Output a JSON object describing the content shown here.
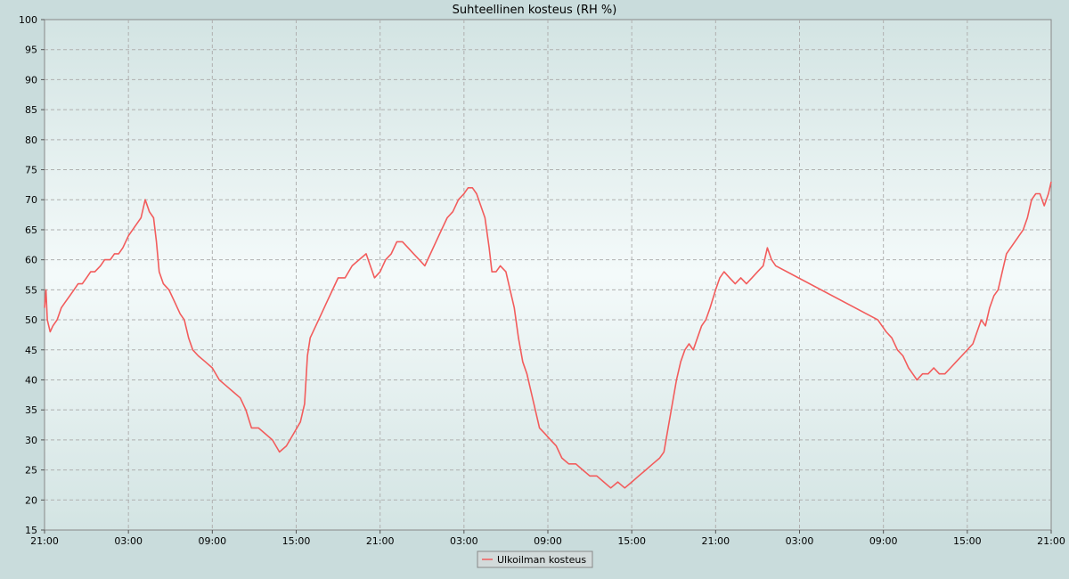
{
  "chart_data": {
    "type": "line",
    "title": "Suhteellinen kosteus (RH %)",
    "xlabel": "",
    "ylabel": "",
    "ylim": [
      15,
      100
    ],
    "y_ticks": [
      15,
      20,
      25,
      30,
      35,
      40,
      45,
      50,
      55,
      60,
      65,
      70,
      75,
      80,
      85,
      90,
      95,
      100
    ],
    "x_range_hours": [
      0,
      72
    ],
    "x_ticks": [
      {
        "h": 0,
        "label": "21:00"
      },
      {
        "h": 6,
        "label": "03:00"
      },
      {
        "h": 12,
        "label": "09:00"
      },
      {
        "h": 18,
        "label": "15:00"
      },
      {
        "h": 24,
        "label": "21:00"
      },
      {
        "h": 30,
        "label": "03:00"
      },
      {
        "h": 36,
        "label": "09:00"
      },
      {
        "h": 42,
        "label": "15:00"
      },
      {
        "h": 48,
        "label": "21:00"
      },
      {
        "h": 54,
        "label": "03:00"
      },
      {
        "h": 60,
        "label": "09:00"
      },
      {
        "h": 66,
        "label": "15:00"
      },
      {
        "h": 72,
        "label": "21:00"
      }
    ],
    "grid": true,
    "legend_position": "bottom-center",
    "series": [
      {
        "name": "Ulkoilman kosteus",
        "color": "#f25c5c",
        "points": [
          [
            0.0,
            52
          ],
          [
            0.1,
            55
          ],
          [
            0.2,
            50
          ],
          [
            0.4,
            48
          ],
          [
            0.6,
            49
          ],
          [
            0.9,
            50
          ],
          [
            1.2,
            52
          ],
          [
            1.5,
            53
          ],
          [
            1.8,
            54
          ],
          [
            2.1,
            55
          ],
          [
            2.4,
            56
          ],
          [
            2.7,
            56
          ],
          [
            3.0,
            57
          ],
          [
            3.3,
            58
          ],
          [
            3.6,
            58
          ],
          [
            4.0,
            59
          ],
          [
            4.3,
            60
          ],
          [
            4.7,
            60
          ],
          [
            5.0,
            61
          ],
          [
            5.3,
            61
          ],
          [
            5.6,
            62
          ],
          [
            6.0,
            64
          ],
          [
            6.3,
            65
          ],
          [
            6.6,
            66
          ],
          [
            6.9,
            67
          ],
          [
            7.2,
            70
          ],
          [
            7.5,
            68
          ],
          [
            7.8,
            67
          ],
          [
            8.0,
            63
          ],
          [
            8.2,
            58
          ],
          [
            8.5,
            56
          ],
          [
            8.9,
            55
          ],
          [
            9.3,
            53
          ],
          [
            9.7,
            51
          ],
          [
            10.0,
            50
          ],
          [
            10.3,
            47
          ],
          [
            10.6,
            45
          ],
          [
            11.0,
            44
          ],
          [
            11.5,
            43
          ],
          [
            12.0,
            42
          ],
          [
            12.5,
            40
          ],
          [
            13.0,
            39
          ],
          [
            13.5,
            38
          ],
          [
            14.0,
            37
          ],
          [
            14.4,
            35
          ],
          [
            14.8,
            32
          ],
          [
            15.3,
            32
          ],
          [
            15.8,
            31
          ],
          [
            16.3,
            30
          ],
          [
            16.8,
            28
          ],
          [
            17.3,
            29
          ],
          [
            17.8,
            31
          ],
          [
            18.3,
            33
          ],
          [
            18.6,
            36
          ],
          [
            18.8,
            44
          ],
          [
            19.0,
            47
          ],
          [
            19.4,
            49
          ],
          [
            19.8,
            51
          ],
          [
            20.2,
            53
          ],
          [
            20.6,
            55
          ],
          [
            21.0,
            57
          ],
          [
            21.5,
            57
          ],
          [
            22.0,
            59
          ],
          [
            22.5,
            60
          ],
          [
            23.0,
            61
          ],
          [
            23.3,
            59
          ],
          [
            23.6,
            57
          ],
          [
            24.0,
            58
          ],
          [
            24.4,
            60
          ],
          [
            24.8,
            61
          ],
          [
            25.2,
            63
          ],
          [
            25.6,
            63
          ],
          [
            26.0,
            62
          ],
          [
            26.4,
            61
          ],
          [
            26.8,
            60
          ],
          [
            27.2,
            59
          ],
          [
            27.6,
            61
          ],
          [
            28.0,
            63
          ],
          [
            28.4,
            65
          ],
          [
            28.8,
            67
          ],
          [
            29.2,
            68
          ],
          [
            29.6,
            70
          ],
          [
            30.0,
            71
          ],
          [
            30.3,
            72
          ],
          [
            30.6,
            72
          ],
          [
            30.9,
            71
          ],
          [
            31.2,
            69
          ],
          [
            31.5,
            67
          ],
          [
            31.8,
            62
          ],
          [
            32.0,
            58
          ],
          [
            32.3,
            58
          ],
          [
            32.6,
            59
          ],
          [
            33.0,
            58
          ],
          [
            33.3,
            55
          ],
          [
            33.6,
            52
          ],
          [
            33.9,
            47
          ],
          [
            34.2,
            43
          ],
          [
            34.5,
            41
          ],
          [
            34.8,
            38
          ],
          [
            35.1,
            35
          ],
          [
            35.4,
            32
          ],
          [
            35.8,
            31
          ],
          [
            36.2,
            30
          ],
          [
            36.6,
            29
          ],
          [
            37.0,
            27
          ],
          [
            37.5,
            26
          ],
          [
            38.0,
            26
          ],
          [
            38.5,
            25
          ],
          [
            39.0,
            24
          ],
          [
            39.5,
            24
          ],
          [
            40.0,
            23
          ],
          [
            40.5,
            22
          ],
          [
            41.0,
            23
          ],
          [
            41.5,
            22
          ],
          [
            42.0,
            23
          ],
          [
            42.5,
            24
          ],
          [
            43.0,
            25
          ],
          [
            43.5,
            26
          ],
          [
            44.0,
            27
          ],
          [
            44.3,
            28
          ],
          [
            44.6,
            32
          ],
          [
            44.9,
            36
          ],
          [
            45.2,
            40
          ],
          [
            45.5,
            43
          ],
          [
            45.8,
            45
          ],
          [
            46.1,
            46
          ],
          [
            46.4,
            45
          ],
          [
            46.7,
            47
          ],
          [
            47.0,
            49
          ],
          [
            47.3,
            50
          ],
          [
            47.6,
            52
          ],
          [
            48.0,
            55
          ],
          [
            48.3,
            57
          ],
          [
            48.6,
            58
          ],
          [
            49.0,
            57
          ],
          [
            49.4,
            56
          ],
          [
            49.8,
            57
          ],
          [
            50.2,
            56
          ],
          [
            50.6,
            57
          ],
          [
            51.0,
            58
          ],
          [
            51.4,
            59
          ],
          [
            51.7,
            62
          ],
          [
            52.0,
            60
          ],
          [
            52.3,
            59
          ],
          [
            59.6,
            50
          ],
          [
            59.9,
            49
          ],
          [
            60.2,
            48
          ],
          [
            60.6,
            47
          ],
          [
            61.0,
            45
          ],
          [
            61.4,
            44
          ],
          [
            61.8,
            42
          ],
          [
            62.1,
            41
          ],
          [
            62.4,
            40
          ],
          [
            62.8,
            41
          ],
          [
            63.2,
            41
          ],
          [
            63.6,
            42
          ],
          [
            64.0,
            41
          ],
          [
            64.4,
            41
          ],
          [
            64.8,
            42
          ],
          [
            65.2,
            43
          ],
          [
            65.6,
            44
          ],
          [
            66.0,
            45
          ],
          [
            66.4,
            46
          ],
          [
            66.7,
            48
          ],
          [
            67.0,
            50
          ],
          [
            67.3,
            49
          ],
          [
            67.6,
            52
          ],
          [
            67.9,
            54
          ],
          [
            68.2,
            55
          ],
          [
            68.5,
            58
          ],
          [
            68.8,
            61
          ],
          [
            69.1,
            62
          ],
          [
            69.4,
            63
          ],
          [
            69.7,
            64
          ],
          [
            70.0,
            65
          ],
          [
            70.3,
            67
          ],
          [
            70.6,
            70
          ],
          [
            70.9,
            71
          ],
          [
            71.2,
            71
          ],
          [
            71.5,
            69
          ],
          [
            71.8,
            71
          ],
          [
            72.0,
            73
          ]
        ]
      }
    ]
  }
}
